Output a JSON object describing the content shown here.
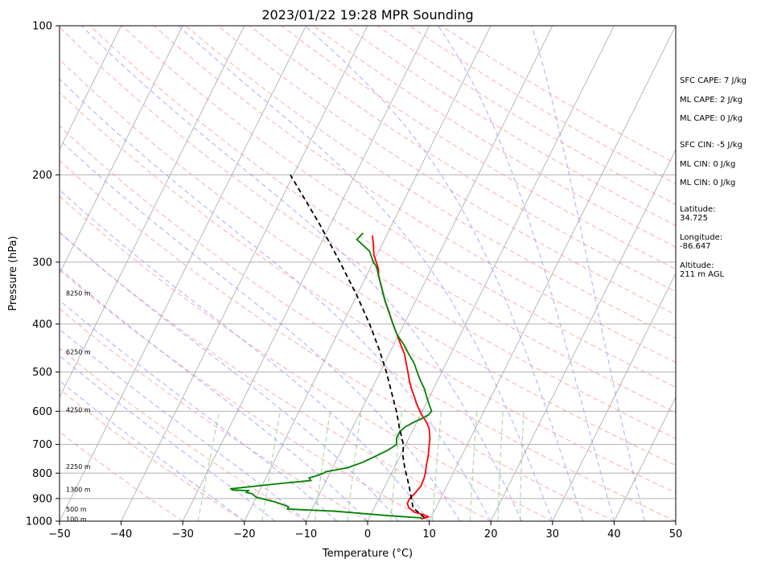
{
  "chart_data": {
    "type": "skew-t",
    "title": "2023/01/22 19:28 MPR Sounding",
    "xlabel": "Temperature (°C)",
    "ylabel": "Pressure (hPa)",
    "xlim": [
      -50,
      50
    ],
    "ylim": [
      1000,
      100
    ],
    "y_scale": "log",
    "xticks": [
      "−50",
      "−40",
      "−30",
      "−20",
      "−10",
      "0",
      "10",
      "20",
      "30",
      "40",
      "50"
    ],
    "yticks": [
      "100",
      "200",
      "300",
      "400",
      "500",
      "600",
      "700",
      "800",
      "900",
      "1000"
    ],
    "grid": true,
    "series": [
      {
        "role": "temperature",
        "color": "#ff0000",
        "points": [
          [
            8.5,
            990
          ],
          [
            9.5,
            980
          ],
          [
            8.5,
            970
          ],
          [
            7,
            960
          ],
          [
            5.6,
            940
          ],
          [
            5.0,
            920
          ],
          [
            5.0,
            900
          ],
          [
            5.4,
            880
          ],
          [
            5.8,
            850
          ],
          [
            5.7,
            820
          ],
          [
            5.5,
            800
          ],
          [
            5.0,
            770
          ],
          [
            4.6,
            740
          ],
          [
            4.2,
            720
          ],
          [
            3.8,
            700
          ],
          [
            3.4,
            680
          ],
          [
            2.5,
            650
          ],
          [
            1.5,
            630
          ],
          [
            0.5,
            615
          ],
          [
            -0.4,
            600
          ],
          [
            -1.5,
            580
          ],
          [
            -2.5,
            560
          ],
          [
            -3.6,
            540
          ],
          [
            -4.6,
            520
          ],
          [
            -5.5,
            500
          ],
          [
            -6.5,
            480
          ],
          [
            -7.5,
            460
          ],
          [
            -8.9,
            440
          ],
          [
            -10.3,
            420
          ],
          [
            -11.8,
            400
          ],
          [
            -13.3,
            380
          ],
          [
            -14.9,
            360
          ],
          [
            -16.4,
            340
          ],
          [
            -18.0,
            320
          ],
          [
            -18.6,
            310
          ],
          [
            -19.5,
            300
          ],
          [
            -20.5,
            290
          ],
          [
            -21.5,
            275
          ],
          [
            -22.3,
            265
          ]
        ]
      },
      {
        "role": "dewpoint",
        "color": "#008000",
        "points": [
          [
            8.5,
            985
          ],
          [
            3,
            975
          ],
          [
            -6,
            955
          ],
          [
            -14,
            945
          ],
          [
            -14,
            935
          ],
          [
            -16.5,
            915
          ],
          [
            -20,
            895
          ],
          [
            -21,
            880
          ],
          [
            -22,
            875
          ],
          [
            -21.8,
            868
          ],
          [
            -24.5,
            865
          ],
          [
            -24.8,
            860
          ],
          [
            -17.5,
            840
          ],
          [
            -12.5,
            828
          ],
          [
            -13,
            818
          ],
          [
            -12,
            810
          ],
          [
            -11.5,
            805
          ],
          [
            -11.0,
            800
          ],
          [
            -10.8,
            795
          ],
          [
            -7.5,
            780
          ],
          [
            -5.5,
            760
          ],
          [
            -4.0,
            740
          ],
          [
            -2.5,
            720
          ],
          [
            -1.5,
            700
          ],
          [
            -2,
            680
          ],
          [
            -2,
            660
          ],
          [
            -1.5,
            645
          ],
          [
            -0.4,
            630
          ],
          [
            0.6,
            620
          ],
          [
            1.3,
            610
          ],
          [
            1.5,
            600
          ],
          [
            0.5,
            580
          ],
          [
            -0.5,
            560
          ],
          [
            -1.5,
            540
          ],
          [
            -2.8,
            520
          ],
          [
            -4.0,
            500
          ],
          [
            -5.2,
            480
          ],
          [
            -6.8,
            460
          ],
          [
            -8.4,
            440
          ],
          [
            -10.3,
            420
          ],
          [
            -11.8,
            400
          ],
          [
            -13.3,
            380
          ],
          [
            -14.9,
            360
          ],
          [
            -16.4,
            340
          ],
          [
            -18.0,
            320
          ],
          [
            -18.8,
            310
          ],
          [
            -19.3,
            305
          ],
          [
            -20.0,
            300
          ],
          [
            -21.5,
            285
          ],
          [
            -23.5,
            275
          ],
          [
            -24.5,
            270
          ],
          [
            -24.0,
            262
          ]
        ]
      },
      {
        "role": "parcel",
        "color": "#000000",
        "points": [
          [
            9.0,
            985
          ],
          [
            6.3,
            940
          ],
          [
            5.0,
            890
          ],
          [
            4.2,
            860
          ],
          [
            3.0,
            820
          ],
          [
            1.7,
            780
          ],
          [
            0.5,
            740
          ],
          [
            -0.4,
            700
          ],
          [
            -2.3,
            650
          ],
          [
            -4.2,
            600
          ],
          [
            -6.5,
            550
          ],
          [
            -9.0,
            500
          ],
          [
            -12.0,
            450
          ],
          [
            -15.6,
            400
          ],
          [
            -20.0,
            350
          ],
          [
            -25.4,
            300
          ],
          [
            -32.0,
            250
          ],
          [
            -40.5,
            200
          ]
        ]
      }
    ],
    "side_labels": [
      "SFC CAPE: 7 J/kg",
      "ML CAPE: 2 J/kg",
      "ML CAPE: 0 J/kg",
      "SFC CIN: -5 J/kg",
      "ML CIN: 0 J/kg",
      "ML CIN: 0 J/kg",
      "Latitude:\n34.725",
      "Longitude:\n-86.647",
      "Altitude:\n211 m AGL"
    ],
    "height_labels": [
      {
        "text": "100 m",
        "p": 993
      },
      {
        "text": "500 m",
        "p": 948
      },
      {
        "text": "1300 m",
        "p": 865
      },
      {
        "text": "2250 m",
        "p": 777
      },
      {
        "text": "4250 m",
        "p": 597
      },
      {
        "text": "6250 m",
        "p": 456
      },
      {
        "text": "8250 m",
        "p": 347
      }
    ]
  }
}
